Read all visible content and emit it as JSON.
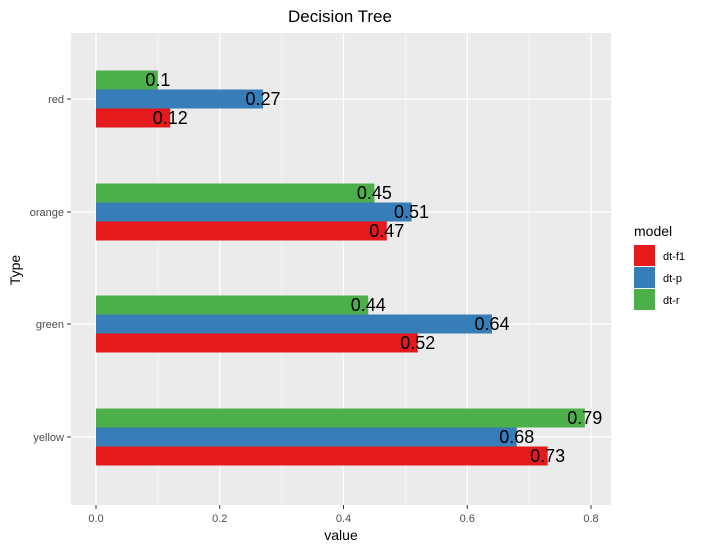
{
  "chart_data": {
    "type": "bar",
    "orientation": "horizontal",
    "title": "Decision Tree",
    "xlabel": "value",
    "ylabel": "Type",
    "categories": [
      "red",
      "orange",
      "green",
      "yellow"
    ],
    "xlim": [
      0,
      0.82
    ],
    "xticks": [
      0.0,
      0.2,
      0.4,
      0.6,
      0.8
    ],
    "xtick_labels": [
      "0.0",
      "0.2",
      "0.4",
      "0.6",
      "0.8"
    ],
    "grid": true,
    "legend": {
      "title": "model",
      "position": "right"
    },
    "series": [
      {
        "name": "dt-f1",
        "color": "#e41a1c",
        "values": [
          0.12,
          0.47,
          0.52,
          0.73
        ],
        "labels": [
          "0.12",
          "0.47",
          "0.52",
          "0.73"
        ]
      },
      {
        "name": "dt-p",
        "color": "#377eb8",
        "values": [
          0.27,
          0.51,
          0.64,
          0.68
        ],
        "labels": [
          "0.27",
          "0.51",
          "0.64",
          "0.68"
        ]
      },
      {
        "name": "dt-r",
        "color": "#4daf4a",
        "values": [
          0.1,
          0.45,
          0.44,
          0.79
        ],
        "labels": [
          "0.1",
          "0.45",
          "0.44",
          "0.79"
        ]
      }
    ]
  }
}
